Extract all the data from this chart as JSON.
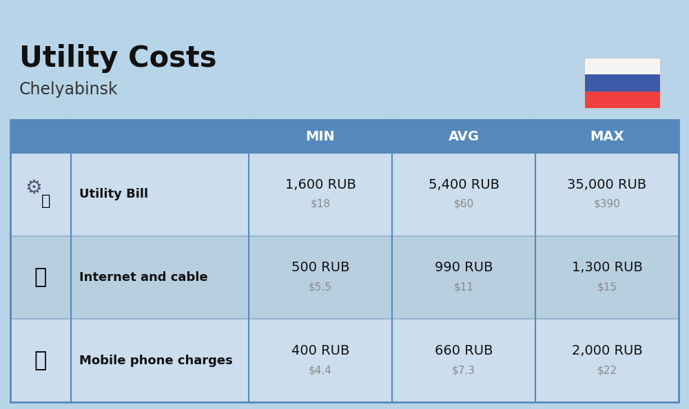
{
  "title": "Utility Costs",
  "subtitle": "Chelyabinsk",
  "background_color": "#b8d4e8",
  "header_bg_color": "#5588bb",
  "header_text_color": "#ffffff",
  "row_bg_color_odd": "#ccdded",
  "row_bg_color_even": "#b8cfe0",
  "row_divider_color": "#8ab0cc",
  "table_border_color": "#5588bb",
  "columns": [
    "",
    "",
    "MIN",
    "AVG",
    "MAX"
  ],
  "rows": [
    {
      "label": "Utility Bill",
      "min_rub": "1,600 RUB",
      "min_usd": "$18",
      "avg_rub": "5,400 RUB",
      "avg_usd": "$60",
      "max_rub": "35,000 RUB",
      "max_usd": "$390",
      "icon": "utility"
    },
    {
      "label": "Internet and cable",
      "min_rub": "500 RUB",
      "min_usd": "$5.5",
      "avg_rub": "990 RUB",
      "avg_usd": "$11",
      "max_rub": "1,300 RUB",
      "max_usd": "$15",
      "icon": "internet"
    },
    {
      "label": "Mobile phone charges",
      "min_rub": "400 RUB",
      "min_usd": "$4.4",
      "avg_rub": "660 RUB",
      "avg_usd": "$7.3",
      "max_rub": "2,000 RUB",
      "max_usd": "$22",
      "icon": "mobile"
    }
  ],
  "title_fontsize": 30,
  "subtitle_fontsize": 17,
  "header_fontsize": 14,
  "label_fontsize": 13,
  "value_fontsize": 14,
  "usd_fontsize": 11,
  "flag_white": "#f5f5f5",
  "flag_blue": "#3d5aab",
  "flag_red": "#f04040",
  "icon_bg": "#b8d4e8"
}
